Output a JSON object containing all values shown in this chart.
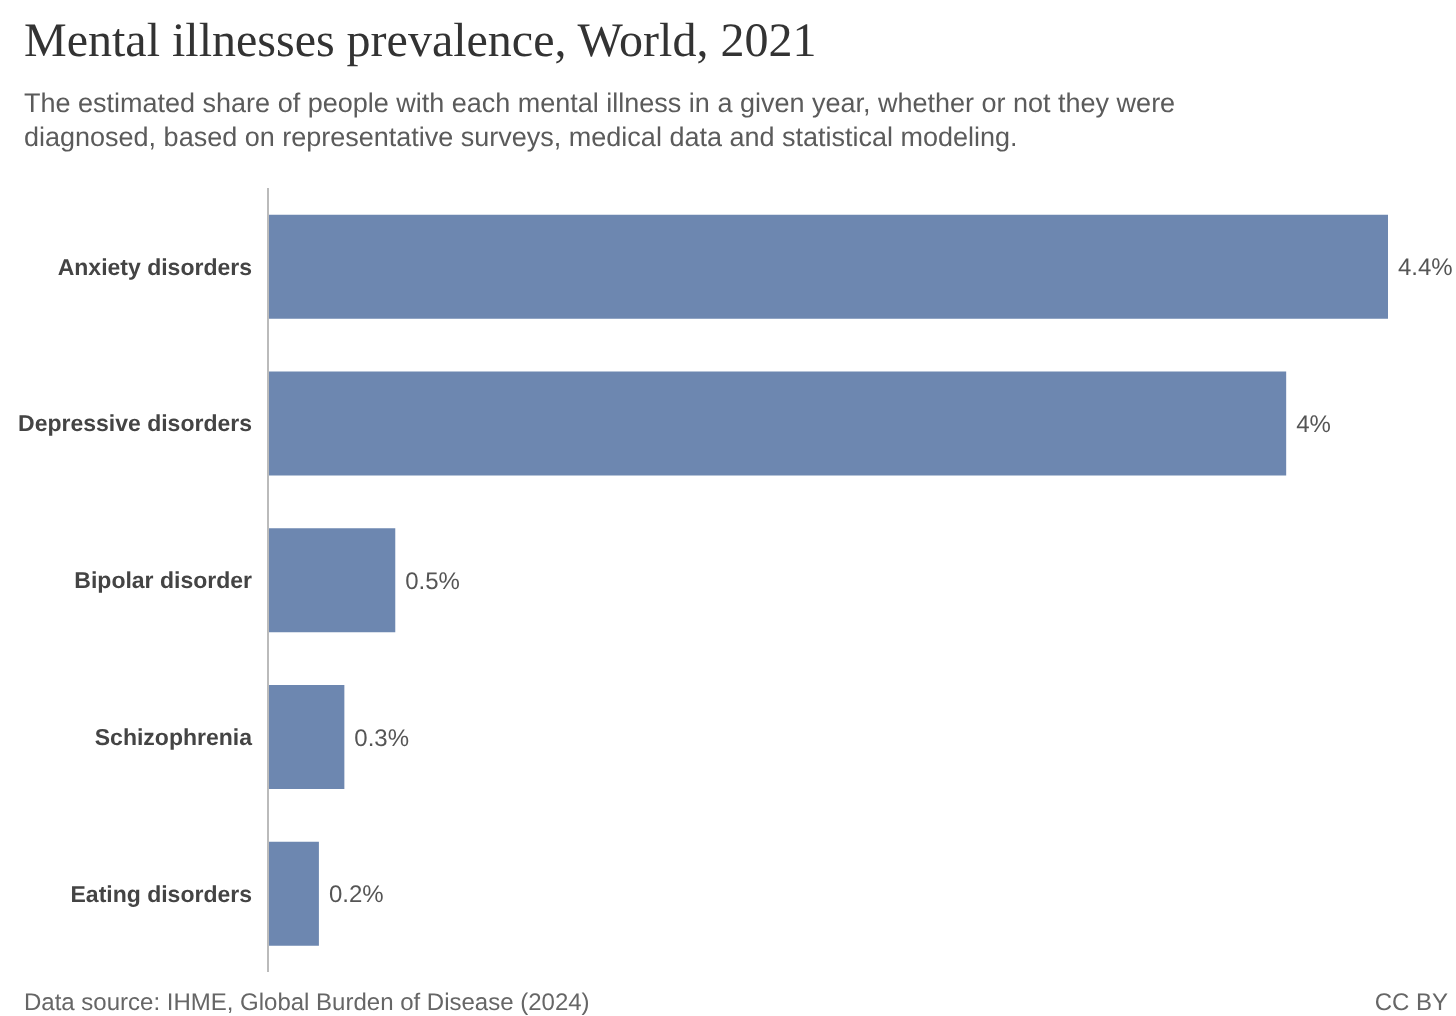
{
  "chart_data": {
    "type": "bar",
    "orientation": "horizontal",
    "title": "Mental illnesses prevalence, World, 2021",
    "subtitle": "The estimated share of people with each mental illness in a given year, whether or not they were diagnosed, based on representative surveys, medical data and statistical modeling.",
    "categories": [
      "Anxiety disorders",
      "Depressive disorders",
      "Bipolar disorder",
      "Schizophrenia",
      "Eating disorders"
    ],
    "values": [
      4.4,
      4,
      0.5,
      0.3,
      0.2
    ],
    "value_labels": [
      "4.4%",
      "4%",
      "0.5%",
      "0.3%",
      "0.2%"
    ],
    "color": "#6d87b0",
    "annotations": [
      "Data source: IHME, Global Burden of Disease (2024)",
      "CC BY"
    ]
  }
}
